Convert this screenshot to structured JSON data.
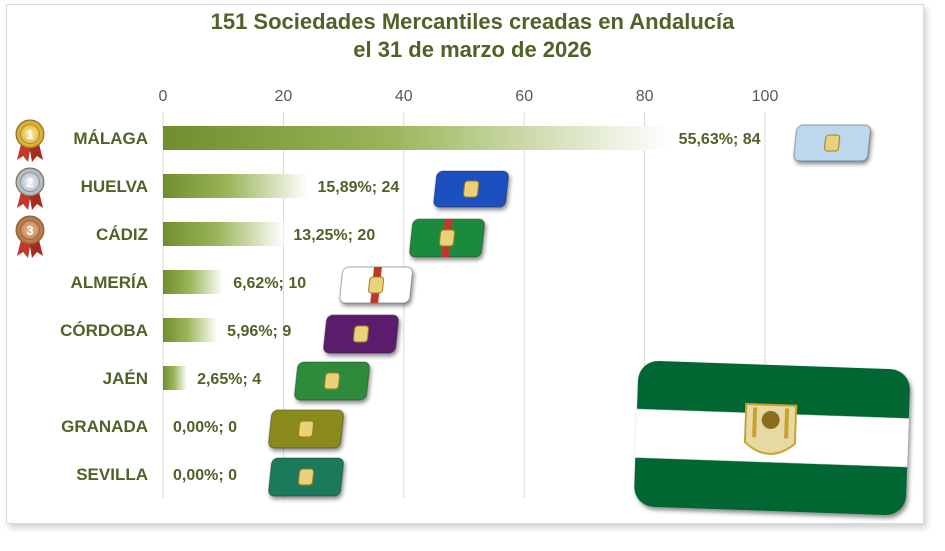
{
  "title_line1": "151 Sociedades Mercantiles creadas en Andalucía",
  "title_line2": "el 31 de marzo de 2026",
  "colors": {
    "text": "#4f6228",
    "bar": "#6f8f2f",
    "grid": "#d9d9d9",
    "gold": "#d4a017",
    "silver": "#a6aeb8",
    "bronze": "#b06a3b",
    "andalucia_green": "#006633"
  },
  "chart_data": {
    "type": "bar",
    "orientation": "horizontal",
    "title": "151 Sociedades Mercantiles creadas en Andalucía el 31 de marzo de 2026",
    "categories": [
      "MÁLAGA",
      "HUELVA",
      "CÁDIZ",
      "ALMERÍA",
      "CÓRDOBA",
      "JAÉN",
      "GRANADA",
      "SEVILLA"
    ],
    "values": [
      84,
      24,
      20,
      10,
      9,
      4,
      0,
      0
    ],
    "data_labels": [
      "55,63%; 84",
      "15,89%; 24",
      "13,25%; 20",
      "6,62%; 10",
      "5,96%; 9",
      "2,65%; 4",
      "0,00%; 0",
      "0,00%; 0"
    ],
    "xlim": [
      0,
      100
    ],
    "xticks": [
      "0",
      "20",
      "40",
      "60",
      "80",
      "100"
    ],
    "grid": true,
    "axis_position": "top",
    "medals": [
      {
        "rank": "1",
        "color": "gold"
      },
      {
        "rank": "2",
        "color": "silver"
      },
      {
        "rank": "3",
        "color": "bronze"
      }
    ],
    "flags": [
      {
        "province": "MÁLAGA",
        "colors": [
          "#bcd8ef",
          "#bcd8ef"
        ]
      },
      {
        "province": "HUELVA",
        "colors": [
          "#1f4fbf",
          "#1f4fbf"
        ]
      },
      {
        "province": "CÁDIZ",
        "colors": [
          "#1e8a3c",
          "#c0392b"
        ]
      },
      {
        "province": "ALMERÍA",
        "colors": [
          "#ffffff",
          "#c0392b"
        ]
      },
      {
        "province": "CÓRDOBA",
        "colors": [
          "#5b1f6e",
          "#5b1f6e"
        ]
      },
      {
        "province": "JAÉN",
        "colors": [
          "#2e8b3a",
          "#2e8b3a"
        ]
      },
      {
        "province": "GRANADA",
        "colors": [
          "#8a8a1e",
          "#8a8a1e"
        ]
      },
      {
        "province": "SEVILLA",
        "colors": [
          "#1f7a5c",
          "#1f7a5c"
        ]
      }
    ],
    "big_flag": {
      "name": "Andalucía",
      "colors": [
        "#006633",
        "#ffffff",
        "#006633"
      ]
    }
  }
}
